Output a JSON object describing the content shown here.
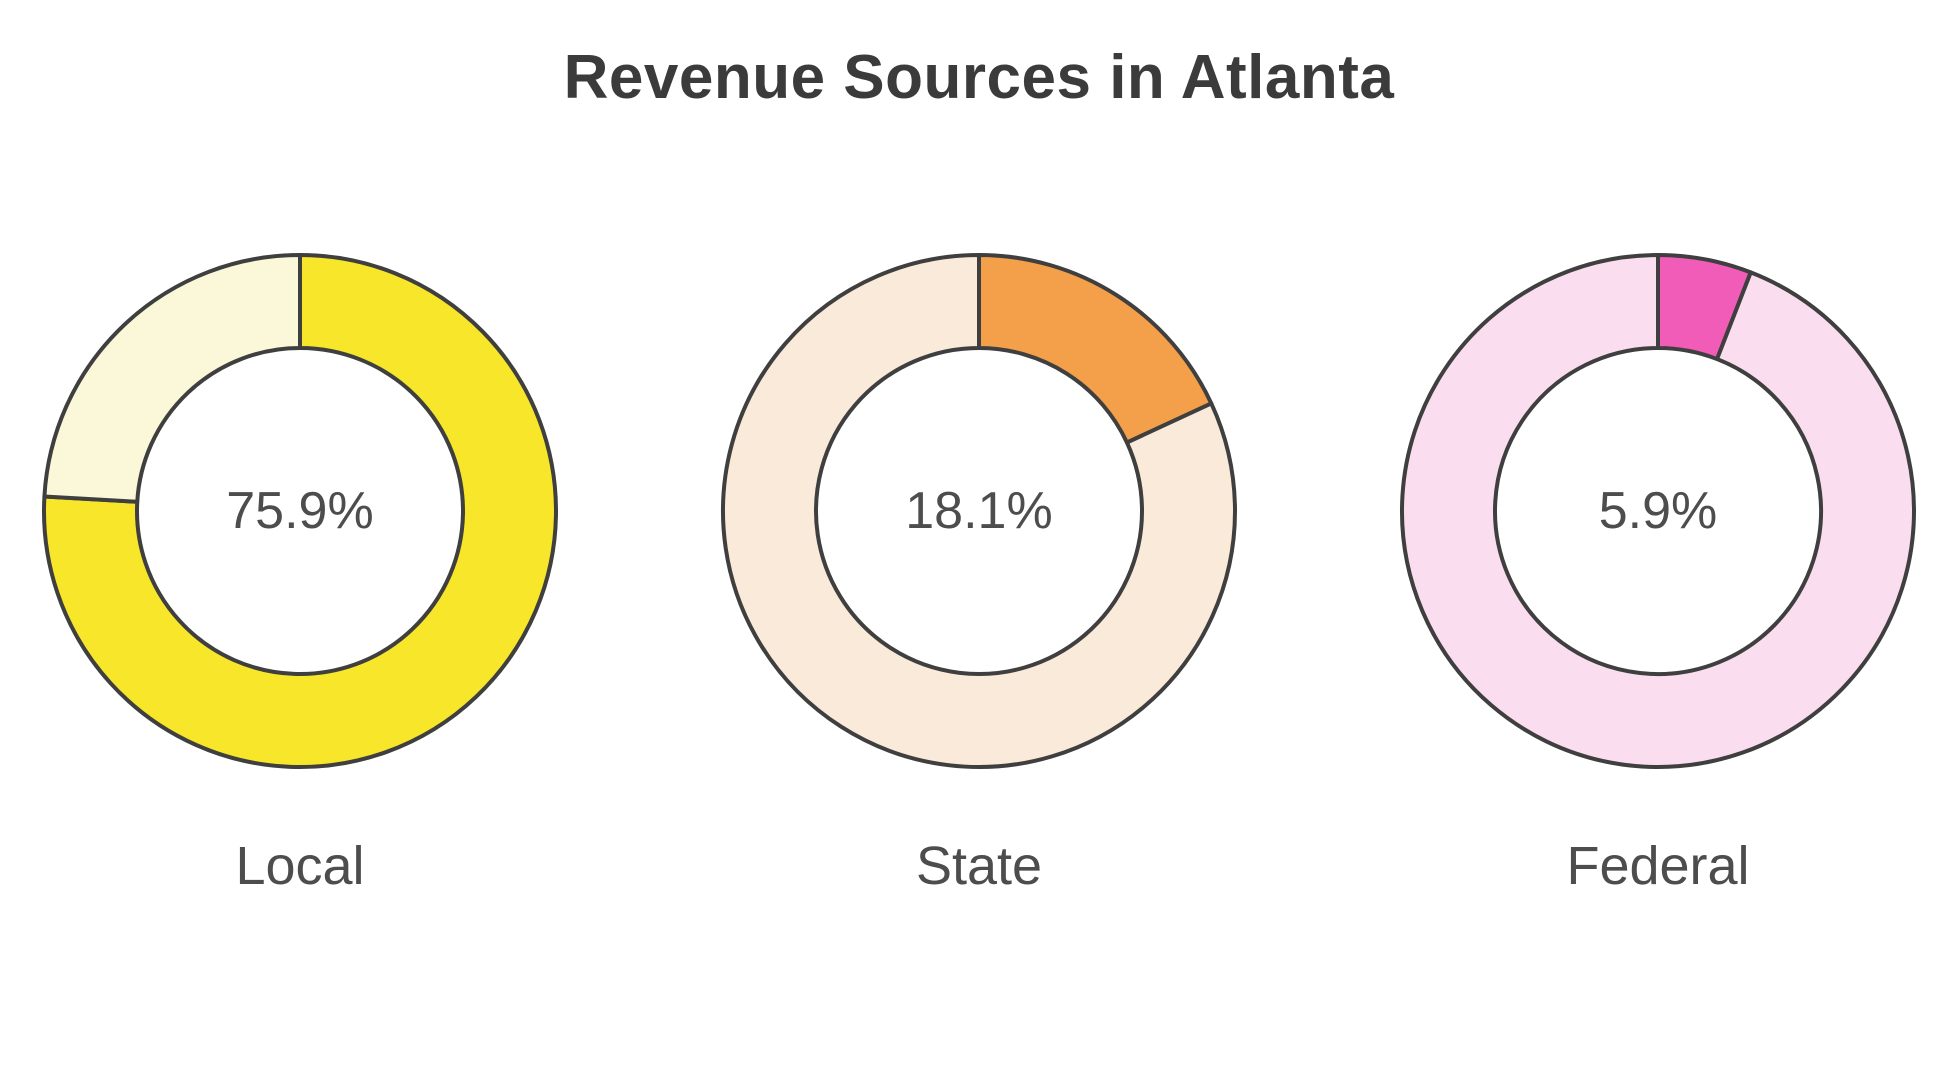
{
  "chart_data": {
    "type": "pie",
    "title": "Revenue Sources in Atlanta",
    "legend_position": "below-each-donut",
    "outline_color": "#3f3f3f",
    "charts": [
      {
        "label": "Local",
        "value_pct": 75.9,
        "value_label": "75.9%",
        "remainder_pct": 24.1,
        "slice_color": "#f8e62b",
        "remainder_color": "#fbf8da"
      },
      {
        "label": "State",
        "value_pct": 18.1,
        "value_label": "18.1%",
        "remainder_pct": 81.9,
        "slice_color": "#f4a04b",
        "remainder_color": "#faeada"
      },
      {
        "label": "Federal",
        "value_pct": 5.9,
        "value_label": "5.9%",
        "remainder_pct": 94.1,
        "slice_color": "#f05cb7",
        "remainder_color": "#fadeef"
      }
    ]
  }
}
